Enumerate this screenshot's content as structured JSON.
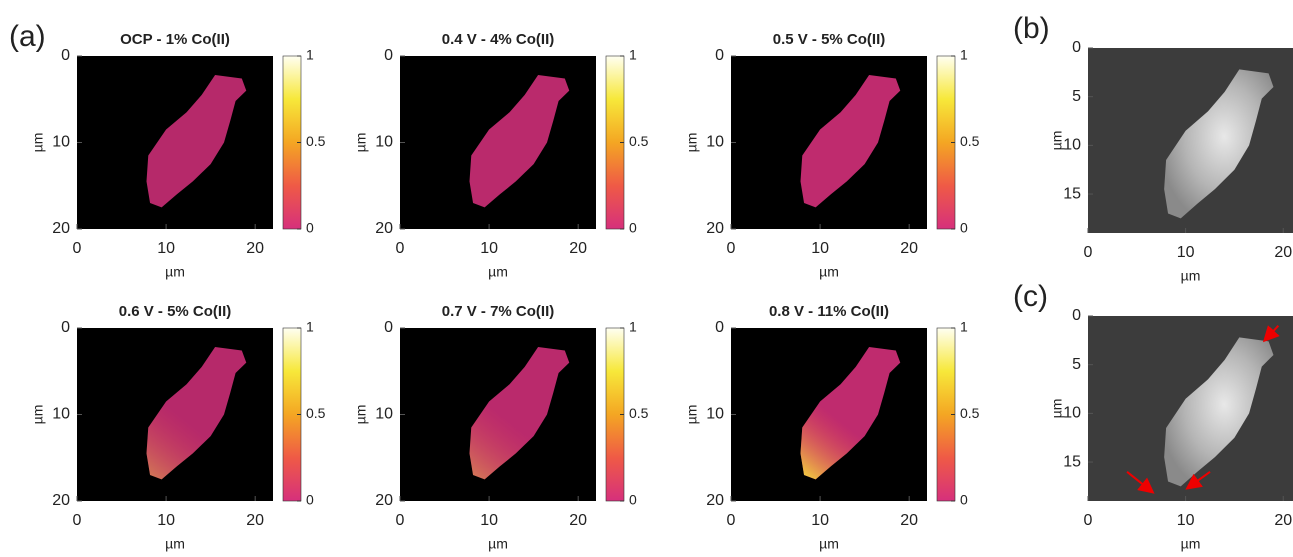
{
  "chart_data": [
    {
      "type": "heatmap",
      "panel": "(a)",
      "title": "OCP - 1% Co(II)",
      "xlabel": "µm",
      "ylabel": "µm",
      "xlim": [
        0,
        22
      ],
      "ylim": [
        20,
        0
      ],
      "xticks": [
        0,
        10,
        20
      ],
      "yticks": [
        0,
        10,
        20
      ],
      "colorbar_lim": [
        0,
        1
      ],
      "colorbar_ticks": [
        0,
        0.5,
        1
      ],
      "colormap": [
        "#d6307c",
        "#ef5a46",
        "#f4a623",
        "#f7e83a",
        "#fffff2"
      ]
    },
    {
      "type": "heatmap",
      "title": "0.4 V - 4% Co(II)",
      "xlabel": "µm",
      "ylabel": "µm",
      "xlim": [
        0,
        22
      ],
      "ylim": [
        20,
        0
      ],
      "xticks": [
        0,
        10,
        20
      ],
      "yticks": [
        0,
        10,
        20
      ],
      "colorbar_lim": [
        0,
        1
      ],
      "colorbar_ticks": [
        0,
        0.5,
        1
      ],
      "colormap": [
        "#d6307c",
        "#ef5a46",
        "#f4a623",
        "#f7e83a",
        "#fffff2"
      ]
    },
    {
      "type": "heatmap",
      "title": "0.5 V - 5% Co(II)",
      "xlabel": "µm",
      "ylabel": "µm",
      "xlim": [
        0,
        22
      ],
      "ylim": [
        20,
        0
      ],
      "xticks": [
        0,
        10,
        20
      ],
      "yticks": [
        0,
        10,
        20
      ],
      "colorbar_lim": [
        0,
        1
      ],
      "colorbar_ticks": [
        0,
        0.5,
        1
      ],
      "colormap": [
        "#d6307c",
        "#ef5a46",
        "#f4a623",
        "#f7e83a",
        "#fffff2"
      ]
    },
    {
      "type": "heatmap",
      "title": "0.6 V - 5% Co(II)",
      "xlabel": "µm",
      "ylabel": "µm",
      "xlim": [
        0,
        22
      ],
      "ylim": [
        20,
        0
      ],
      "xticks": [
        0,
        10,
        20
      ],
      "yticks": [
        0,
        10,
        20
      ],
      "colorbar_lim": [
        0,
        1
      ],
      "colorbar_ticks": [
        0,
        0.5,
        1
      ],
      "colormap": [
        "#d6307c",
        "#ef5a46",
        "#f4a623",
        "#f7e83a",
        "#fffff2"
      ]
    },
    {
      "type": "heatmap",
      "title": "0.7 V - 7% Co(II)",
      "xlabel": "µm",
      "ylabel": "µm",
      "xlim": [
        0,
        22
      ],
      "ylim": [
        20,
        0
      ],
      "xticks": [
        0,
        10,
        20
      ],
      "yticks": [
        0,
        10,
        20
      ],
      "colorbar_lim": [
        0,
        1
      ],
      "colorbar_ticks": [
        0,
        0.5,
        1
      ],
      "colormap": [
        "#d6307c",
        "#ef5a46",
        "#f4a623",
        "#f7e83a",
        "#fffff2"
      ]
    },
    {
      "type": "heatmap",
      "title": "0.8 V - 11% Co(II)",
      "xlabel": "µm",
      "ylabel": "µm",
      "xlim": [
        0,
        22
      ],
      "ylim": [
        20,
        0
      ],
      "xticks": [
        0,
        10,
        20
      ],
      "yticks": [
        0,
        10,
        20
      ],
      "colorbar_lim": [
        0,
        1
      ],
      "colorbar_ticks": [
        0,
        0.5,
        1
      ],
      "colormap": [
        "#d6307c",
        "#ef5a46",
        "#f4a623",
        "#f7e83a",
        "#fffff2"
      ]
    },
    {
      "type": "image",
      "panel": "(b)",
      "xlabel": "µm",
      "ylabel": "µm",
      "xlim": [
        0,
        21
      ],
      "ylim": [
        19,
        0
      ],
      "xticks": [
        0,
        10,
        20
      ],
      "yticks": [
        0,
        5,
        10,
        15
      ]
    },
    {
      "type": "image",
      "panel": "(c)",
      "xlabel": "µm",
      "ylabel": "µm",
      "xlim": [
        0,
        21
      ],
      "ylim": [
        19,
        0
      ],
      "xticks": [
        0,
        10,
        20
      ],
      "yticks": [
        0,
        5,
        10,
        15
      ]
    }
  ]
}
